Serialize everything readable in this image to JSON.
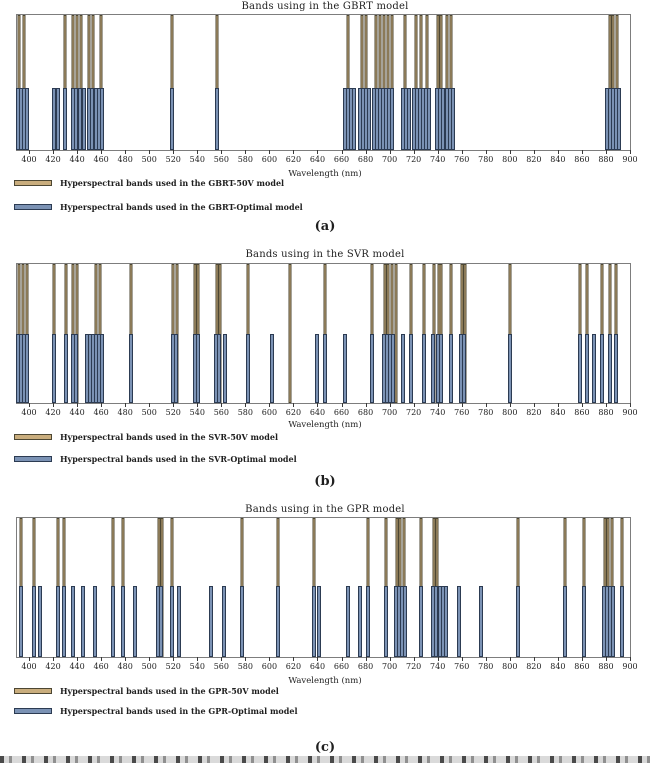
{
  "colors": {
    "v50_fill": "#c9ad7d",
    "v50_border": "#4d4733",
    "optimal_fill": "#7b92b4",
    "optimal_border": "#2c3b52",
    "plot_border": "#7d7d7d"
  },
  "chart_data": [
    {
      "type": "bar",
      "title": "Bands using in the GBRT model",
      "panel_label": "(a)",
      "xlabel": "Wavelength (nm)",
      "ylabel": "",
      "xlim": [
        390,
        900
      ],
      "xticks": [
        400,
        420,
        440,
        460,
        480,
        500,
        520,
        540,
        560,
        580,
        600,
        620,
        640,
        660,
        680,
        700,
        720,
        740,
        760,
        780,
        800,
        820,
        840,
        860,
        880,
        900
      ],
      "grid": false,
      "legend_position": "below-left",
      "series": [
        {
          "name": "Hyperspectral bands used in the GBRT-50V model",
          "role": "v50",
          "height_frac": 1.0,
          "bands_nm": [
            392,
            396,
            430,
            437,
            440,
            443,
            450,
            453,
            460,
            519,
            556,
            665,
            677,
            680,
            689,
            692,
            695,
            699,
            702,
            713,
            722,
            726,
            731,
            740,
            743,
            748,
            751,
            883,
            886,
            889
          ]
        },
        {
          "name": "Hyperspectral bands used in the GBRT-Optimal model",
          "role": "optimal",
          "height_frac": 0.46,
          "bands_nm": [
            390.5,
            393,
            395.5,
            398,
            421,
            424,
            430,
            437,
            439.5,
            442,
            446,
            450,
            452.5,
            455.5,
            458,
            460.5,
            519,
            556,
            663,
            665.5,
            668,
            670.5,
            675,
            677.5,
            680,
            682.5,
            687,
            689.5,
            692,
            694.5,
            697,
            699.5,
            702,
            711.5,
            714,
            716.5,
            720.5,
            723,
            725.5,
            728,
            730.5,
            733,
            739.5,
            742,
            744.5,
            747.5,
            750,
            752.5,
            881,
            883.5,
            886,
            888.5,
            891
          ]
        }
      ]
    },
    {
      "type": "bar",
      "title": "Bands using in the SVR model",
      "panel_label": "(b)",
      "xlabel": "Wavelength (nm)",
      "ylabel": "",
      "xlim": [
        390,
        900
      ],
      "xticks": [
        400,
        420,
        440,
        460,
        480,
        500,
        520,
        540,
        560,
        580,
        600,
        620,
        640,
        660,
        680,
        700,
        720,
        740,
        760,
        780,
        800,
        820,
        840,
        860,
        880,
        900
      ],
      "grid": false,
      "legend_position": "below-left",
      "series": [
        {
          "name": "Hyperspectral bands used in the SVR-50V model",
          "role": "v50",
          "height_frac": 1.0,
          "bands_nm": [
            392,
            395,
            398,
            421,
            431,
            437,
            440,
            456,
            459,
            485,
            520,
            523,
            538,
            541,
            556,
            559,
            582,
            617,
            646,
            685,
            696,
            699,
            702,
            705,
            718,
            729,
            737,
            741,
            743,
            751,
            760,
            763,
            800,
            858,
            864,
            877,
            883,
            888
          ]
        },
        {
          "name": "Hyperspectral bands used in the SVR-Optimal model",
          "role": "optimal",
          "height_frac": 0.5,
          "bands_nm": [
            391,
            393.5,
            396,
            398.5,
            421,
            431,
            437,
            439.5,
            448,
            450.5,
            453,
            456,
            458.5,
            461,
            485,
            519.5,
            522,
            538,
            541,
            555.5,
            558,
            563,
            582,
            602,
            640,
            646,
            663,
            685,
            695.5,
            698,
            700.5,
            703,
            711,
            718,
            729,
            736.5,
            740.5,
            743,
            751,
            759.5,
            762,
            800,
            858,
            864,
            870,
            877,
            883,
            888
          ]
        }
      ]
    },
    {
      "type": "bar",
      "title": "Bands using in the GPR model",
      "panel_label": "(c)",
      "xlabel": "Wavelength (nm)",
      "ylabel": "",
      "xlim": [
        390,
        900
      ],
      "xticks": [
        400,
        420,
        440,
        460,
        480,
        500,
        520,
        540,
        560,
        580,
        600,
        620,
        640,
        660,
        680,
        700,
        720,
        740,
        760,
        780,
        800,
        820,
        840,
        860,
        880,
        900
      ],
      "grid": false,
      "legend_position": "below-left",
      "series": [
        {
          "name": "Hyperspectral bands used in the GPR-50V model",
          "role": "v50",
          "height_frac": 1.0,
          "bands_nm": [
            393,
            404,
            424,
            429,
            470,
            478,
            508,
            511,
            519,
            577,
            607,
            637,
            682,
            697,
            706,
            709,
            712,
            726,
            737,
            739.5,
            807,
            846,
            862,
            879,
            882,
            885,
            893
          ]
        },
        {
          "name": "Hyperspectral bands used in the GPR-Optimal model",
          "role": "optimal",
          "height_frac": 0.51,
          "bands_nm": [
            393,
            404,
            409,
            424,
            429,
            437,
            445,
            455,
            470,
            478,
            488,
            507.5,
            510,
            519,
            525,
            551,
            562,
            577,
            607,
            637,
            641,
            665,
            675,
            682,
            697,
            705,
            707.5,
            710,
            712.5,
            726,
            736.5,
            739,
            742,
            744.5,
            747,
            758,
            776,
            807,
            846,
            862,
            878.5,
            881,
            883.5,
            886,
            893
          ]
        }
      ]
    }
  ]
}
